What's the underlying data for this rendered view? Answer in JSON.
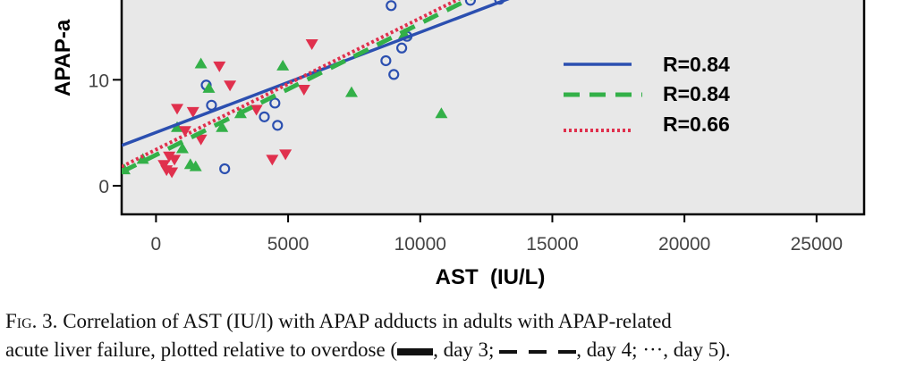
{
  "chart_data": {
    "type": "scatter",
    "xlabel": "AST  (IU/L)",
    "ylabel": "APAP-a",
    "x_ticks": [
      0,
      5000,
      10000,
      15000,
      20000,
      25000
    ],
    "y_ticks": [
      0,
      10
    ],
    "xlim": [
      -1300,
      26800
    ],
    "ylim": [
      -2.7,
      17.7
    ],
    "grid": false,
    "legend_position": "right",
    "background": "#e8e8e8",
    "series": [
      {
        "label": "R=0.84",
        "color": "#2b4fb0",
        "marker": "circle",
        "fit_line": "solid",
        "fit": [
          [
            -1300,
            3.8
          ],
          [
            13500,
            17.8
          ]
        ],
        "points": [
          [
            1900,
            9.5
          ],
          [
            2100,
            7.6
          ],
          [
            2600,
            1.6
          ],
          [
            4100,
            6.5
          ],
          [
            4500,
            7.8
          ],
          [
            4600,
            5.7
          ],
          [
            8700,
            11.8
          ],
          [
            9000,
            10.5
          ],
          [
            9300,
            13.0
          ],
          [
            9500,
            14.1
          ],
          [
            8900,
            17.0
          ],
          [
            11900,
            17.5
          ],
          [
            13000,
            17.6
          ]
        ]
      },
      {
        "label": "R=0.84",
        "color": "#33b048",
        "marker": "triangle",
        "fit_line": "dashed",
        "fit": [
          [
            -1300,
            1.3
          ],
          [
            12000,
            17.8
          ]
        ],
        "points": [
          [
            -1200,
            1.5
          ],
          [
            -500,
            2.5
          ],
          [
            800,
            5.5
          ],
          [
            1000,
            3.5
          ],
          [
            1300,
            2.0
          ],
          [
            1500,
            1.8
          ],
          [
            1700,
            11.5
          ],
          [
            2000,
            9.2
          ],
          [
            2500,
            5.5
          ],
          [
            3200,
            6.8
          ],
          [
            4800,
            11.3
          ],
          [
            7400,
            8.8
          ],
          [
            9400,
            14.3
          ],
          [
            10800,
            6.8
          ]
        ]
      },
      {
        "label": "R=0.66",
        "color": "#e0304d",
        "marker": "triangle-down",
        "fit_line": "dotted",
        "fit": [
          [
            -1300,
            1.8
          ],
          [
            11600,
            17.8
          ]
        ],
        "points": [
          [
            300,
            2.0
          ],
          [
            400,
            1.5
          ],
          [
            500,
            2.8
          ],
          [
            600,
            1.3
          ],
          [
            700,
            2.5
          ],
          [
            800,
            7.3
          ],
          [
            1100,
            5.2
          ],
          [
            1400,
            7.0
          ],
          [
            1700,
            4.4
          ],
          [
            2400,
            11.3
          ],
          [
            2800,
            9.5
          ],
          [
            3800,
            7.2
          ],
          [
            4400,
            2.5
          ],
          [
            4900,
            3.0
          ],
          [
            5600,
            9.1
          ],
          [
            5900,
            13.4
          ]
        ]
      }
    ]
  },
  "caption": {
    "fig_label": "Fig. 3.",
    "line1_text": "Correlation of AST (IU/l) with APAP adducts in adults with APAP-related",
    "line2_text": "acute liver failure, plotted relative to overdose (",
    "day3": ", day 3;",
    "day4": ", day 4;",
    "day5_symbol": "···",
    "day5": ", day 5)."
  }
}
